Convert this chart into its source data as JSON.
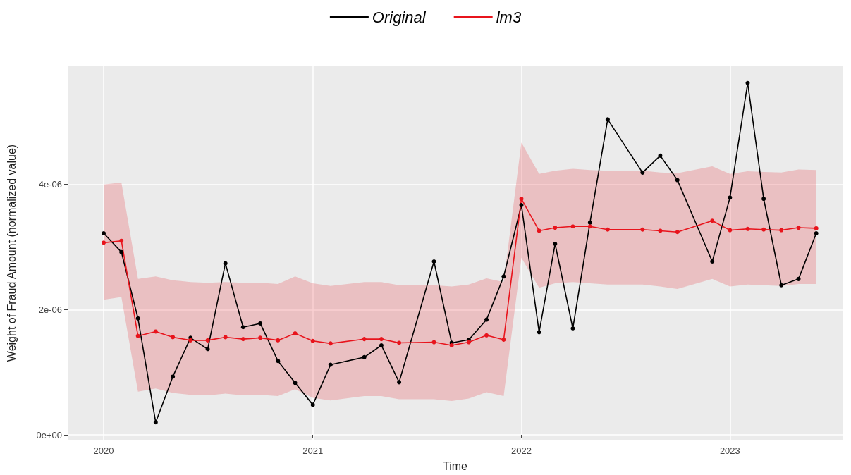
{
  "chart_data": {
    "type": "line",
    "xlabel": "Time",
    "ylabel": "Weight of Fraud Amount (normalized value)",
    "xlim": [
      "2019-10-30",
      "2023-07-17"
    ],
    "xticks": [
      "2020",
      "2021",
      "2022",
      "2023"
    ],
    "ylim": [
      -9e-08,
      5.9e-06
    ],
    "yticks": [
      {
        "value": 0,
        "label": "0e+00"
      },
      {
        "value": 2e-06,
        "label": "2e-06"
      },
      {
        "value": 4e-06,
        "label": "4e-06"
      }
    ],
    "grid": true,
    "legend": "top",
    "marker": "circle",
    "line_style": "solid",
    "series": [
      {
        "name": "Original",
        "color": "#000000",
        "x": [
          "2020-01",
          "2020-02",
          "2020-03",
          "2020-04",
          "2020-05",
          "2020-06",
          "2020-07",
          "2020-08",
          "2020-09",
          "2020-10",
          "2020-11",
          "2020-12",
          "2021-01",
          "2021-02",
          "2021-04",
          "2021-05",
          "2021-06",
          "2021-08",
          "2021-09",
          "2021-10",
          "2021-11",
          "2021-12",
          "2022-01",
          "2022-02",
          "2022-03",
          "2022-04",
          "2022-05",
          "2022-06",
          "2022-08",
          "2022-09",
          "2022-10",
          "2022-12",
          "2023-01",
          "2023-02",
          "2023-03",
          "2023-04",
          "2023-05",
          "2023-06"
        ],
        "values": [
          3.22e-06,
          2.92e-06,
          1.86e-06,
          2e-07,
          9.3e-07,
          1.55e-06,
          1.37e-06,
          2.74e-06,
          1.72e-06,
          1.78e-06,
          1.18e-06,
          8.3e-07,
          4.8e-07,
          1.12e-06,
          1.24e-06,
          1.43e-06,
          8.4e-07,
          2.77e-06,
          1.47e-06,
          1.52e-06,
          1.84e-06,
          2.53e-06,
          3.67e-06,
          1.64e-06,
          3.05e-06,
          1.7e-06,
          3.39e-06,
          5.04e-06,
          4.19e-06,
          4.46e-06,
          4.07e-06,
          2.77e-06,
          3.79e-06,
          5.62e-06,
          3.77e-06,
          2.39e-06,
          2.49e-06,
          3.22e-06
        ]
      },
      {
        "name": "lm3",
        "color": "#e8141c",
        "x": [
          "2020-01",
          "2020-02",
          "2020-03",
          "2020-04",
          "2020-05",
          "2020-06",
          "2020-07",
          "2020-08",
          "2020-09",
          "2020-10",
          "2020-11",
          "2020-12",
          "2021-01",
          "2021-02",
          "2021-04",
          "2021-05",
          "2021-06",
          "2021-08",
          "2021-09",
          "2021-10",
          "2021-11",
          "2021-12",
          "2022-01",
          "2022-02",
          "2022-03",
          "2022-04",
          "2022-05",
          "2022-06",
          "2022-08",
          "2022-09",
          "2022-10",
          "2022-12",
          "2023-01",
          "2023-02",
          "2023-03",
          "2023-04",
          "2023-05",
          "2023-06"
        ],
        "values": [
          3.07e-06,
          3.1e-06,
          1.58e-06,
          1.65e-06,
          1.56e-06,
          1.51e-06,
          1.51e-06,
          1.56e-06,
          1.53e-06,
          1.55e-06,
          1.51e-06,
          1.62e-06,
          1.5e-06,
          1.46e-06,
          1.53e-06,
          1.53e-06,
          1.47e-06,
          1.48e-06,
          1.43e-06,
          1.48e-06,
          1.59e-06,
          1.52e-06,
          3.77e-06,
          3.26e-06,
          3.31e-06,
          3.33e-06,
          3.33e-06,
          3.28e-06,
          3.28e-06,
          3.26e-06,
          3.24e-06,
          3.42e-06,
          3.27e-06,
          3.29e-06,
          3.28e-06,
          3.27e-06,
          3.31e-06,
          3.3e-06
        ],
        "lower": [
          2.16e-06,
          2.2e-06,
          6.9e-07,
          7.4e-07,
          6.7e-07,
          6.4e-07,
          6.3e-07,
          6.6e-07,
          6.3e-07,
          6.4e-07,
          6.2e-07,
          7.3e-07,
          5.9e-07,
          5.5e-07,
          6.2e-07,
          6.2e-07,
          5.7e-07,
          5.7e-07,
          5.4e-07,
          5.8e-07,
          6.8e-07,
          6.2e-07,
          2.83e-06,
          2.35e-06,
          2.42e-06,
          2.44e-06,
          2.42e-06,
          2.4e-06,
          2.4e-06,
          2.37e-06,
          2.33e-06,
          2.49e-06,
          2.37e-06,
          2.4e-06,
          2.39e-06,
          2.38e-06,
          2.41e-06,
          2.41e-06
        ],
        "upper": [
          4e-06,
          4.03e-06,
          2.49e-06,
          2.53e-06,
          2.47e-06,
          2.44e-06,
          2.43e-06,
          2.44e-06,
          2.43e-06,
          2.43e-06,
          2.41e-06,
          2.53e-06,
          2.42e-06,
          2.38e-06,
          2.44e-06,
          2.44e-06,
          2.39e-06,
          2.39e-06,
          2.37e-06,
          2.4e-06,
          2.5e-06,
          2.44e-06,
          4.67e-06,
          4.17e-06,
          4.22e-06,
          4.25e-06,
          4.23e-06,
          4.22e-06,
          4.22e-06,
          4.19e-06,
          4.18e-06,
          4.29e-06,
          4.17e-06,
          4.21e-06,
          4.2e-06,
          4.19e-06,
          4.24e-06,
          4.23e-06
        ]
      }
    ]
  }
}
